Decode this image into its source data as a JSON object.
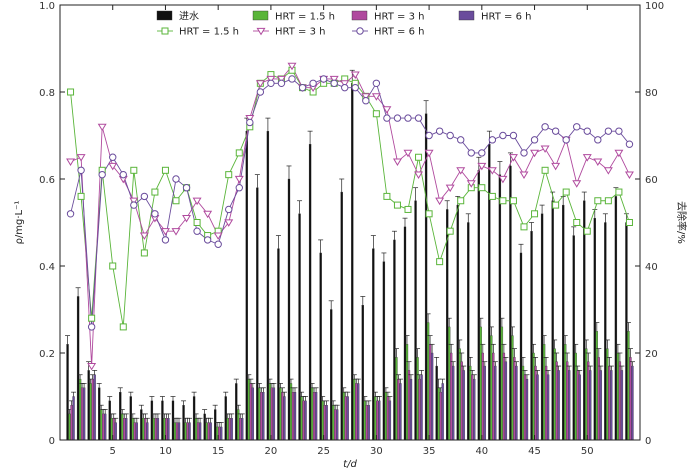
{
  "chart_data": {
    "type": "bar+line",
    "title": "",
    "xlabel": "t/d",
    "ylabel_left": "ρ/mg·L⁻¹",
    "ylabel_right": "去除率/%",
    "xlim": [
      0,
      55
    ],
    "ylim_left": [
      0,
      1.0
    ],
    "ylim_right": [
      0,
      100
    ],
    "x_ticks": [
      5,
      10,
      15,
      20,
      25,
      30,
      35,
      40,
      45,
      50
    ],
    "x_tick_labels": [
      "5",
      "10",
      "15",
      "20",
      "25",
      "30",
      "35",
      "40",
      "45",
      "50"
    ],
    "y_left_ticks": [
      0,
      0.2,
      0.4,
      0.6,
      0.8,
      1.0
    ],
    "y_left_tick_labels": [
      "0",
      "0.2",
      "0.4",
      "0.6",
      "0.8",
      "1.0"
    ],
    "y_right_ticks": [
      0,
      20,
      40,
      60,
      80,
      100
    ],
    "y_right_tick_labels": [
      "0",
      "20",
      "40",
      "60",
      "80",
      "100"
    ],
    "grid": false,
    "legend_position": "top",
    "colors": {
      "influent": "#111111",
      "hrt15": "#5ab53a",
      "hrt3": "#b04a9e",
      "hrt6": "#6a4c9c"
    },
    "days": [
      1,
      2,
      3,
      4,
      5,
      6,
      7,
      8,
      9,
      10,
      11,
      12,
      13,
      14,
      15,
      16,
      17,
      18,
      19,
      20,
      21,
      22,
      23,
      24,
      25,
      26,
      27,
      28,
      29,
      30,
      31,
      32,
      33,
      34,
      35,
      36,
      37,
      38,
      39,
      40,
      41,
      42,
      43,
      44,
      45,
      46,
      47,
      48,
      49,
      50,
      51,
      52,
      53,
      54
    ],
    "bar_series": [
      {
        "name": "进水",
        "color": "#111111",
        "values": [
          0.22,
          0.33,
          0.16,
          0.12,
          0.09,
          0.11,
          0.1,
          0.07,
          0.09,
          0.09,
          0.09,
          0.08,
          0.1,
          0.06,
          0.07,
          0.1,
          0.13,
          0.71,
          0.58,
          0.71,
          0.44,
          0.6,
          0.52,
          0.68,
          0.43,
          0.3,
          0.57,
          0.82,
          0.31,
          0.44,
          0.41,
          0.46,
          0.49,
          0.55,
          0.75,
          0.17,
          0.53,
          0.54,
          0.5,
          0.62,
          0.68,
          0.61,
          0.63,
          0.43,
          0.48,
          0.52,
          0.55,
          0.54,
          0.47,
          0.55,
          0.51,
          0.5,
          0.56,
          0.5
        ],
        "error": [
          0.02,
          0.02,
          0.02,
          0.01,
          0.01,
          0.01,
          0.01,
          0.01,
          0.01,
          0.01,
          0.01,
          0.01,
          0.01,
          0.01,
          0.01,
          0.01,
          0.01,
          0.03,
          0.03,
          0.03,
          0.03,
          0.03,
          0.03,
          0.03,
          0.03,
          0.02,
          0.03,
          0.03,
          0.02,
          0.03,
          0.02,
          0.02,
          0.02,
          0.03,
          0.03,
          0.02,
          0.02,
          0.02,
          0.02,
          0.03,
          0.03,
          0.03,
          0.03,
          0.02,
          0.02,
          0.02,
          0.02,
          0.02,
          0.02,
          0.02,
          0.02,
          0.02,
          0.02,
          0.02
        ]
      },
      {
        "name": "HRT = 1.5 h",
        "color": "#5ab53a",
        "values": [
          0.06,
          0.14,
          0.13,
          0.07,
          0.05,
          0.06,
          0.05,
          0.05,
          0.05,
          0.05,
          0.04,
          0.04,
          0.05,
          0.04,
          0.03,
          0.05,
          0.07,
          0.14,
          0.12,
          0.13,
          0.12,
          0.13,
          0.1,
          0.12,
          0.09,
          0.08,
          0.11,
          0.14,
          0.09,
          0.1,
          0.11,
          0.19,
          0.22,
          0.19,
          0.27,
          0.12,
          0.26,
          0.21,
          0.17,
          0.26,
          0.24,
          0.26,
          0.24,
          0.17,
          0.2,
          0.22,
          0.21,
          0.22,
          0.2,
          0.21,
          0.25,
          0.21,
          0.2,
          0.25
        ],
        "error": [
          0.01,
          0.01,
          0.01,
          0.01,
          0.01,
          0.01,
          0.01,
          0.01,
          0.01,
          0.01,
          0.01,
          0.01,
          0.01,
          0.01,
          0.01,
          0.01,
          0.01,
          0.01,
          0.01,
          0.01,
          0.01,
          0.01,
          0.01,
          0.01,
          0.01,
          0.01,
          0.01,
          0.01,
          0.01,
          0.01,
          0.01,
          0.02,
          0.02,
          0.02,
          0.02,
          0.02,
          0.02,
          0.02,
          0.02,
          0.02,
          0.02,
          0.02,
          0.02,
          0.02,
          0.02,
          0.02,
          0.02,
          0.02,
          0.02,
          0.02,
          0.02,
          0.02,
          0.02,
          0.02
        ]
      },
      {
        "name": "HRT = 3 h",
        "color": "#b04a9e",
        "values": [
          0.08,
          0.12,
          0.14,
          0.06,
          0.05,
          0.05,
          0.04,
          0.05,
          0.05,
          0.05,
          0.04,
          0.04,
          0.04,
          0.04,
          0.03,
          0.05,
          0.05,
          0.13,
          0.11,
          0.12,
          0.11,
          0.11,
          0.09,
          0.11,
          0.08,
          0.07,
          0.1,
          0.13,
          0.08,
          0.09,
          0.1,
          0.14,
          0.16,
          0.14,
          0.22,
          0.11,
          0.2,
          0.18,
          0.15,
          0.2,
          0.2,
          0.2,
          0.19,
          0.15,
          0.17,
          0.17,
          0.18,
          0.18,
          0.16,
          0.18,
          0.19,
          0.17,
          0.18,
          0.19
        ],
        "error": [
          0.01,
          0.01,
          0.01,
          0.01,
          0.01,
          0.01,
          0.01,
          0.01,
          0.01,
          0.01,
          0.01,
          0.01,
          0.01,
          0.01,
          0.01,
          0.01,
          0.01,
          0.01,
          0.01,
          0.01,
          0.01,
          0.01,
          0.01,
          0.01,
          0.01,
          0.01,
          0.01,
          0.01,
          0.01,
          0.01,
          0.01,
          0.01,
          0.02,
          0.01,
          0.02,
          0.01,
          0.02,
          0.02,
          0.01,
          0.02,
          0.02,
          0.02,
          0.02,
          0.01,
          0.02,
          0.02,
          0.02,
          0.02,
          0.01,
          0.02,
          0.02,
          0.02,
          0.02,
          0.02
        ]
      },
      {
        "name": "HRT = 6 h",
        "color": "#6a4c9c",
        "values": [
          0.1,
          0.12,
          0.15,
          0.06,
          0.04,
          0.05,
          0.04,
          0.04,
          0.05,
          0.05,
          0.04,
          0.04,
          0.04,
          0.04,
          0.03,
          0.05,
          0.05,
          0.12,
          0.11,
          0.12,
          0.1,
          0.11,
          0.09,
          0.11,
          0.08,
          0.07,
          0.1,
          0.13,
          0.08,
          0.09,
          0.09,
          0.13,
          0.14,
          0.15,
          0.2,
          0.13,
          0.17,
          0.16,
          0.14,
          0.17,
          0.17,
          0.18,
          0.17,
          0.14,
          0.15,
          0.15,
          0.16,
          0.16,
          0.15,
          0.16,
          0.16,
          0.16,
          0.16,
          0.17
        ],
        "error": [
          0.01,
          0.01,
          0.01,
          0.01,
          0.01,
          0.01,
          0.01,
          0.01,
          0.01,
          0.01,
          0.01,
          0.01,
          0.01,
          0.01,
          0.01,
          0.01,
          0.01,
          0.01,
          0.01,
          0.01,
          0.01,
          0.01,
          0.01,
          0.01,
          0.01,
          0.01,
          0.01,
          0.01,
          0.01,
          0.01,
          0.01,
          0.01,
          0.01,
          0.01,
          0.02,
          0.01,
          0.01,
          0.01,
          0.01,
          0.01,
          0.01,
          0.01,
          0.01,
          0.01,
          0.01,
          0.01,
          0.01,
          0.01,
          0.01,
          0.01,
          0.01,
          0.01,
          0.01,
          0.01
        ]
      }
    ],
    "line_series": [
      {
        "name": "HRT = 1.5 h",
        "marker": "square",
        "color": "#5ab53a",
        "values": [
          80,
          56,
          28,
          62,
          40,
          26,
          62,
          43,
          57,
          62,
          55,
          58,
          50,
          47,
          48,
          61,
          66,
          72,
          82,
          84,
          83,
          85,
          81,
          80,
          82,
          82,
          83,
          82,
          79,
          75,
          56,
          54,
          53,
          65,
          52,
          41,
          48,
          55,
          58,
          58,
          56,
          55,
          55,
          49,
          52,
          62,
          54,
          57,
          50,
          48,
          55,
          55,
          57,
          50
        ]
      },
      {
        "name": "HRT = 3 h",
        "marker": "triangle",
        "color": "#b04a9e",
        "values": [
          64,
          65,
          17,
          72,
          63,
          60,
          55,
          47,
          51,
          48,
          48,
          51,
          55,
          52,
          47,
          50,
          60,
          74,
          82,
          83,
          83,
          86,
          81,
          81,
          83,
          83,
          82,
          84,
          79,
          79,
          76,
          64,
          66,
          61,
          66,
          55,
          58,
          62,
          59,
          63,
          62,
          60,
          65,
          61,
          66,
          67,
          63,
          69,
          59,
          65,
          64,
          62,
          66,
          61
        ]
      },
      {
        "name": "HRT = 6 h",
        "marker": "circle",
        "color": "#6a4c9c",
        "values": [
          52,
          62,
          26,
          61,
          65,
          61,
          54,
          56,
          52,
          46,
          60,
          58,
          48,
          46,
          45,
          53,
          58,
          73,
          80,
          82,
          82,
          83,
          81,
          82,
          83,
          82,
          81,
          81,
          78,
          82,
          74,
          74,
          74,
          74,
          70,
          71,
          70,
          69,
          66,
          66,
          69,
          70,
          70,
          66,
          69,
          72,
          71,
          69,
          72,
          71,
          69,
          71,
          71,
          68
        ]
      }
    ],
    "legend": {
      "row1": [
        "进水",
        "HRT = 1.5 h",
        "HRT = 3 h",
        "HRT = 6 h"
      ],
      "row2": [
        "HRT = 1.5 h",
        "HRT = 3 h",
        "HRT = 6 h"
      ]
    }
  }
}
